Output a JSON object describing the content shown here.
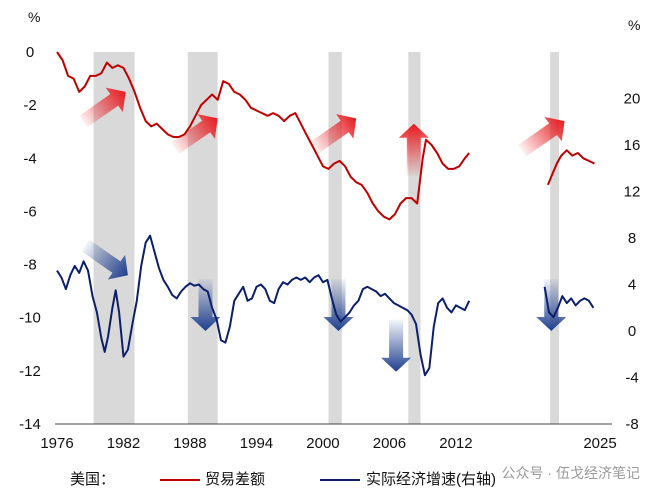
{
  "chart_data": {
    "type": "line",
    "left_unit": "%",
    "right_unit": "%",
    "x_ticks": [
      "1976",
      "1982",
      "1988",
      "1994",
      "2000",
      "2006",
      "2012",
      "2025"
    ],
    "left_ticks": [
      "0",
      "-2",
      "-4",
      "-6",
      "-8",
      "-10",
      "-12",
      "-14"
    ],
    "right_ticks": [
      "20",
      "16",
      "12",
      "8",
      "4",
      "0",
      "-4",
      "-8"
    ],
    "left_ylim": [
      -14,
      0
    ],
    "right_ylim": [
      -8,
      24
    ],
    "recession_shading": [
      [
        1979.3,
        1983.0
      ],
      [
        1987.8,
        1990.5
      ],
      [
        2000.5,
        2001.7
      ],
      [
        2007.7,
        2008.8
      ],
      [
        2020.5,
        2021.3
      ]
    ],
    "arrows": [
      {
        "color": "red",
        "x": 1982.2,
        "y": -1.5,
        "direction": "up-right"
      },
      {
        "color": "red",
        "x": 1990.5,
        "y": -2.5,
        "direction": "up-right"
      },
      {
        "color": "red",
        "x": 2003.0,
        "y": -2.5,
        "direction": "up-right"
      },
      {
        "color": "red",
        "x": 2008.2,
        "y": -2.7,
        "direction": "up"
      },
      {
        "color": "red",
        "x": 2021.8,
        "y": -2.6,
        "direction": "up-right"
      },
      {
        "color": "blue",
        "x": 1982.4,
        "y": 4.8,
        "direction": "down-right"
      },
      {
        "color": "blue",
        "x": 1989.4,
        "y": 0.0,
        "direction": "down"
      },
      {
        "color": "blue",
        "x": 2001.4,
        "y": 0.0,
        "direction": "down"
      },
      {
        "color": "blue",
        "x": 2006.6,
        "y": -3.5,
        "direction": "down"
      },
      {
        "color": "blue",
        "x": 2020.6,
        "y": 0.0,
        "direction": "down"
      }
    ],
    "series": [
      {
        "name": "贸易差额",
        "axis": "left",
        "color": "#c00000",
        "segments": [
          [
            [
              1976.0,
              0.0
            ],
            [
              1976.5,
              -0.3
            ],
            [
              1977.0,
              -0.9
            ],
            [
              1977.5,
              -1.0
            ],
            [
              1978.0,
              -1.5
            ],
            [
              1978.5,
              -1.3
            ],
            [
              1979.0,
              -0.9
            ],
            [
              1979.5,
              -0.9
            ],
            [
              1980.0,
              -0.8
            ],
            [
              1980.5,
              -0.4
            ],
            [
              1981.0,
              -0.6
            ],
            [
              1981.5,
              -0.5
            ],
            [
              1982.0,
              -0.6
            ],
            [
              1982.5,
              -1.0
            ],
            [
              1983.0,
              -1.5
            ],
            [
              1983.5,
              -2.1
            ],
            [
              1984.0,
              -2.6
            ],
            [
              1984.5,
              -2.8
            ],
            [
              1985.0,
              -2.7
            ],
            [
              1985.5,
              -2.9
            ],
            [
              1986.0,
              -3.1
            ],
            [
              1986.5,
              -3.2
            ],
            [
              1987.0,
              -3.2
            ],
            [
              1987.5,
              -3.1
            ],
            [
              1988.0,
              -2.8
            ],
            [
              1988.5,
              -2.4
            ],
            [
              1989.0,
              -2.0
            ],
            [
              1989.5,
              -1.8
            ],
            [
              1990.0,
              -1.6
            ],
            [
              1990.5,
              -1.8
            ],
            [
              1991.0,
              -1.1
            ],
            [
              1991.5,
              -1.2
            ],
            [
              1992.0,
              -1.5
            ],
            [
              1992.5,
              -1.6
            ],
            [
              1993.0,
              -1.8
            ],
            [
              1993.5,
              -2.1
            ],
            [
              1994.0,
              -2.2
            ],
            [
              1994.5,
              -2.3
            ],
            [
              1995.0,
              -2.4
            ],
            [
              1995.5,
              -2.3
            ],
            [
              1996.0,
              -2.4
            ],
            [
              1996.5,
              -2.6
            ],
            [
              1997.0,
              -2.4
            ],
            [
              1997.5,
              -2.3
            ],
            [
              1998.0,
              -2.7
            ],
            [
              1998.5,
              -3.1
            ],
            [
              1999.0,
              -3.5
            ],
            [
              1999.5,
              -3.9
            ],
            [
              2000.0,
              -4.3
            ],
            [
              2000.5,
              -4.4
            ],
            [
              2001.0,
              -4.2
            ],
            [
              2001.5,
              -4.1
            ],
            [
              2002.0,
              -4.3
            ],
            [
              2002.5,
              -4.7
            ],
            [
              2003.0,
              -4.9
            ],
            [
              2003.5,
              -5.0
            ],
            [
              2004.0,
              -5.3
            ],
            [
              2004.5,
              -5.7
            ],
            [
              2005.0,
              -6.0
            ],
            [
              2005.5,
              -6.2
            ],
            [
              2006.0,
              -6.3
            ],
            [
              2006.5,
              -6.1
            ],
            [
              2007.0,
              -5.7
            ],
            [
              2007.5,
              -5.5
            ],
            [
              2008.0,
              -5.5
            ],
            [
              2008.5,
              -5.7
            ],
            [
              2009.0,
              -4.0
            ],
            [
              2009.3,
              -3.3
            ],
            [
              2009.8,
              -3.5
            ],
            [
              2010.3,
              -3.8
            ],
            [
              2010.8,
              -4.2
            ],
            [
              2011.3,
              -4.4
            ],
            [
              2011.8,
              -4.4
            ],
            [
              2012.3,
              -4.3
            ],
            [
              2012.8,
              -4.0
            ],
            [
              2013.2,
              -3.8
            ]
          ],
          [
            [
              2020.3,
              -5.0
            ],
            [
              2020.7,
              -4.6
            ],
            [
              2021.1,
              -4.2
            ],
            [
              2021.5,
              -3.9
            ],
            [
              2022.0,
              -3.7
            ],
            [
              2022.5,
              -3.9
            ],
            [
              2023.0,
              -3.8
            ],
            [
              2023.5,
              -4.0
            ],
            [
              2024.0,
              -4.1
            ],
            [
              2024.5,
              -4.2
            ]
          ]
        ]
      },
      {
        "name": "实际经济增速（右轴）",
        "axis": "right",
        "color": "#0b1f6b",
        "segments": [
          [
            [
              1976.0,
              5.2
            ],
            [
              1976.4,
              4.6
            ],
            [
              1976.8,
              3.6
            ],
            [
              1977.2,
              4.8
            ],
            [
              1977.6,
              5.6
            ],
            [
              1978.0,
              5.0
            ],
            [
              1978.4,
              6.0
            ],
            [
              1978.8,
              5.2
            ],
            [
              1979.2,
              3.0
            ],
            [
              1979.6,
              1.6
            ],
            [
              1980.0,
              -0.6
            ],
            [
              1980.3,
              -1.8
            ],
            [
              1980.6,
              -0.5
            ],
            [
              1981.0,
              2.0
            ],
            [
              1981.3,
              3.5
            ],
            [
              1981.6,
              1.6
            ],
            [
              1982.0,
              -2.2
            ],
            [
              1982.4,
              -1.6
            ],
            [
              1982.8,
              0.6
            ],
            [
              1983.2,
              2.6
            ],
            [
              1983.6,
              5.6
            ],
            [
              1984.0,
              7.6
            ],
            [
              1984.4,
              8.2
            ],
            [
              1984.8,
              6.8
            ],
            [
              1985.2,
              5.4
            ],
            [
              1985.6,
              4.4
            ],
            [
              1986.0,
              3.8
            ],
            [
              1986.4,
              3.1
            ],
            [
              1986.8,
              2.8
            ],
            [
              1987.2,
              3.4
            ],
            [
              1987.6,
              3.8
            ],
            [
              1988.0,
              4.1
            ],
            [
              1988.4,
              3.9
            ],
            [
              1988.8,
              4.0
            ],
            [
              1989.2,
              3.6
            ],
            [
              1989.6,
              3.4
            ],
            [
              1990.0,
              2.0
            ],
            [
              1990.4,
              1.0
            ],
            [
              1990.8,
              -0.8
            ],
            [
              1991.2,
              -1.0
            ],
            [
              1991.6,
              0.4
            ],
            [
              1992.0,
              2.6
            ],
            [
              1992.4,
              3.2
            ],
            [
              1992.8,
              3.8
            ],
            [
              1993.2,
              2.6
            ],
            [
              1993.6,
              2.8
            ],
            [
              1994.0,
              3.8
            ],
            [
              1994.4,
              4.0
            ],
            [
              1994.8,
              3.6
            ],
            [
              1995.2,
              2.6
            ],
            [
              1995.6,
              2.4
            ],
            [
              1996.0,
              3.6
            ],
            [
              1996.4,
              4.2
            ],
            [
              1996.8,
              4.0
            ],
            [
              1997.2,
              4.4
            ],
            [
              1997.6,
              4.6
            ],
            [
              1998.0,
              4.4
            ],
            [
              1998.4,
              4.6
            ],
            [
              1998.8,
              4.2
            ],
            [
              1999.2,
              4.6
            ],
            [
              1999.6,
              4.8
            ],
            [
              2000.0,
              4.2
            ],
            [
              2000.4,
              4.4
            ],
            [
              2000.8,
              2.8
            ],
            [
              2001.2,
              1.4
            ],
            [
              2001.6,
              0.8
            ],
            [
              2002.0,
              1.2
            ],
            [
              2002.4,
              1.6
            ],
            [
              2002.8,
              2.2
            ],
            [
              2003.2,
              2.6
            ],
            [
              2003.6,
              3.6
            ],
            [
              2004.0,
              3.8
            ],
            [
              2004.4,
              3.6
            ],
            [
              2004.8,
              3.4
            ],
            [
              2005.2,
              3.0
            ],
            [
              2005.6,
              3.2
            ],
            [
              2006.0,
              2.8
            ],
            [
              2006.4,
              2.4
            ],
            [
              2006.8,
              2.2
            ],
            [
              2007.2,
              2.0
            ],
            [
              2007.6,
              1.8
            ],
            [
              2008.0,
              1.4
            ],
            [
              2008.4,
              0.6
            ],
            [
              2008.8,
              -2.0
            ],
            [
              2009.2,
              -3.8
            ],
            [
              2009.6,
              -3.2
            ],
            [
              2010.0,
              0.4
            ],
            [
              2010.4,
              2.4
            ],
            [
              2010.8,
              2.8
            ],
            [
              2011.2,
              2.0
            ],
            [
              2011.6,
              1.6
            ],
            [
              2012.0,
              2.2
            ],
            [
              2012.4,
              2.0
            ],
            [
              2012.8,
              1.8
            ],
            [
              2013.2,
              2.6
            ]
          ],
          [
            [
              2020.0,
              3.8
            ],
            [
              2020.4,
              1.6
            ],
            [
              2020.8,
              1.2
            ],
            [
              2021.2,
              2.0
            ],
            [
              2021.6,
              3.0
            ],
            [
              2022.0,
              2.4
            ],
            [
              2022.4,
              2.8
            ],
            [
              2022.8,
              2.2
            ],
            [
              2023.2,
              2.6
            ],
            [
              2023.6,
              2.8
            ],
            [
              2024.0,
              2.6
            ],
            [
              2024.4,
              2.0
            ]
          ]
        ]
      }
    ]
  },
  "legend": {
    "country_label": "美国：",
    "items": [
      "贸易差额",
      "实际经济增速(右轴)"
    ]
  },
  "watermark_text": "公众号 · 伍戈经济笔记"
}
